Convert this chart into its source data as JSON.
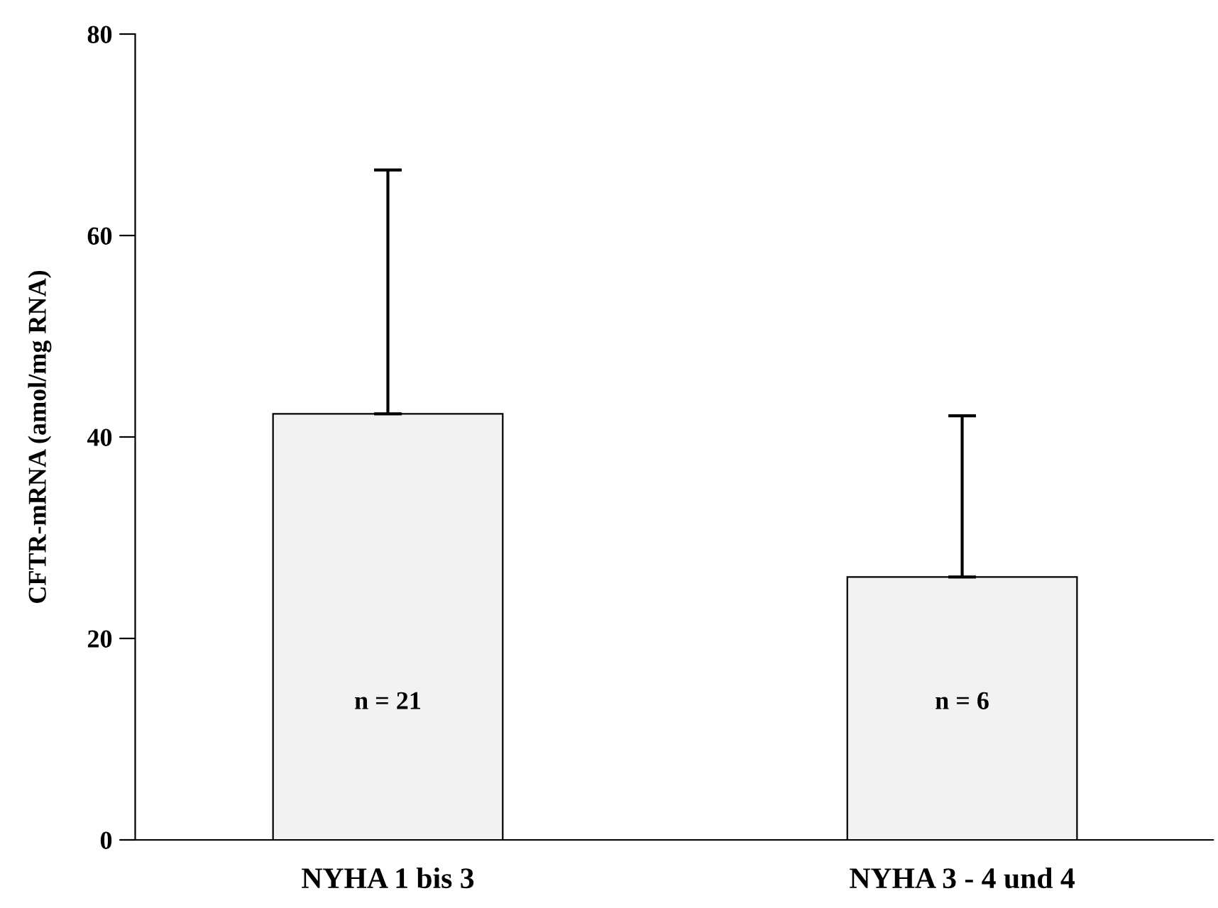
{
  "chart_data": {
    "type": "bar",
    "ylabel": "CFTR-mRNA (amol/mg RNA)",
    "categories": [
      "NYHA 1 bis 3",
      "NYHA 3 - 4 und 4"
    ],
    "values": [
      42.3,
      26.1
    ],
    "errors": [
      [
        42.3,
        66.5
      ],
      [
        26.1,
        42.1
      ]
    ],
    "color": "#f2f2f2",
    "ylim": [
      0,
      80
    ],
    "yticks": [
      0,
      20,
      40,
      60,
      80
    ],
    "grid": false,
    "annotations": [
      "n = 21",
      "n = 6"
    ]
  }
}
